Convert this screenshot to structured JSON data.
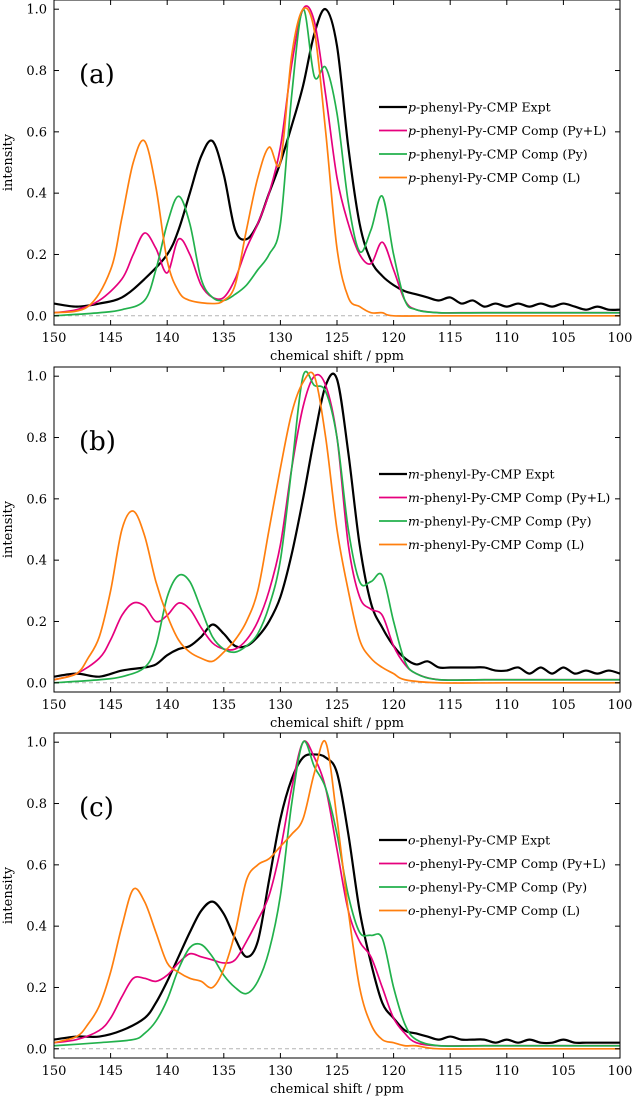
{
  "chart_data": [
    {
      "type": "line",
      "panel_label": "(a)",
      "xlabel": "chemical shift / ppm",
      "ylabel": "intensity",
      "xlim": [
        150,
        100
      ],
      "ylim": [
        -0.03,
        1.03
      ],
      "x_ticks": [
        150,
        145,
        140,
        135,
        130,
        125,
        120,
        115,
        110,
        105,
        100
      ],
      "y_ticks": [
        0.0,
        0.2,
        0.4,
        0.6,
        0.8,
        1.0
      ],
      "baseline": 0,
      "legend_position": "right",
      "series": [
        {
          "name": "p-phenyl-Py-CMP Expt",
          "prefix": "p",
          "rest": "-phenyl-Py-CMP Expt",
          "color": "#000000",
          "x": [
            150,
            148,
            146,
            144,
            142,
            140,
            139,
            138,
            137,
            136,
            135,
            134,
            133,
            132,
            131,
            130,
            129,
            128,
            127,
            126,
            125,
            124,
            123,
            122,
            121,
            120,
            119,
            118,
            117,
            116,
            115,
            114,
            113,
            112,
            111,
            110,
            109,
            108,
            107,
            106,
            105,
            104,
            103,
            102,
            101,
            100
          ],
          "y": [
            0.04,
            0.03,
            0.04,
            0.06,
            0.12,
            0.2,
            0.28,
            0.4,
            0.52,
            0.57,
            0.46,
            0.28,
            0.25,
            0.3,
            0.4,
            0.5,
            0.62,
            0.75,
            0.92,
            1.0,
            0.88,
            0.55,
            0.3,
            0.18,
            0.13,
            0.1,
            0.08,
            0.07,
            0.06,
            0.05,
            0.06,
            0.04,
            0.05,
            0.03,
            0.04,
            0.03,
            0.04,
            0.03,
            0.04,
            0.03,
            0.04,
            0.03,
            0.02,
            0.03,
            0.02,
            0.02
          ]
        },
        {
          "name": "p-phenyl-Py-CMP Comp (Py+L)",
          "prefix": "p",
          "rest": "-phenyl-Py-CMP Comp (Py+L)",
          "color": "#e6007e",
          "x": [
            150,
            148,
            146,
            144,
            143,
            142,
            141,
            140,
            139,
            138,
            137,
            136,
            135,
            134,
            133,
            132,
            131,
            130,
            129,
            128,
            127,
            126,
            125,
            124,
            123,
            122,
            121,
            120,
            119,
            118,
            116,
            114,
            110,
            105,
            100
          ],
          "y": [
            0.01,
            0.02,
            0.05,
            0.12,
            0.2,
            0.27,
            0.22,
            0.14,
            0.25,
            0.2,
            0.1,
            0.06,
            0.06,
            0.12,
            0.22,
            0.3,
            0.4,
            0.55,
            0.82,
            1.0,
            0.96,
            0.72,
            0.45,
            0.3,
            0.2,
            0.17,
            0.24,
            0.15,
            0.05,
            0.02,
            0.01,
            0.01,
            0.01,
            0.01,
            0.01
          ]
        },
        {
          "name": "p-phenyl-Py-CMP Comp (Py)",
          "prefix": "p",
          "rest": "-phenyl-Py-CMP Comp (Py)",
          "color": "#22b14c",
          "x": [
            150,
            146,
            144,
            142,
            141,
            140,
            139,
            138,
            137,
            136,
            135,
            134,
            133,
            132,
            131,
            130,
            129,
            128,
            127,
            126,
            125,
            124,
            123,
            122,
            121,
            120,
            119,
            118,
            116,
            112,
            105,
            100
          ],
          "y": [
            0.0,
            0.01,
            0.02,
            0.05,
            0.15,
            0.3,
            0.39,
            0.3,
            0.12,
            0.06,
            0.05,
            0.07,
            0.1,
            0.15,
            0.2,
            0.3,
            0.72,
            1.0,
            0.78,
            0.81,
            0.66,
            0.37,
            0.21,
            0.28,
            0.39,
            0.2,
            0.05,
            0.02,
            0.01,
            0.01,
            0.01,
            0.01
          ]
        },
        {
          "name": "p-phenyl-Py-CMP Comp (L)",
          "prefix": "p",
          "rest": "-phenyl-Py-CMP Comp (L)",
          "color": "#ff7f0e",
          "x": [
            150,
            147,
            145,
            144,
            143,
            142,
            141,
            140,
            139,
            138,
            136,
            135,
            134,
            133,
            132,
            131,
            130,
            129,
            128,
            127,
            126,
            125,
            124,
            123,
            122,
            121,
            120,
            116,
            110,
            100
          ],
          "y": [
            0.01,
            0.03,
            0.15,
            0.32,
            0.5,
            0.57,
            0.42,
            0.18,
            0.08,
            0.05,
            0.04,
            0.05,
            0.1,
            0.28,
            0.45,
            0.55,
            0.5,
            0.85,
            1.0,
            0.93,
            0.6,
            0.22,
            0.06,
            0.03,
            0.01,
            0.01,
            0.0,
            0.0,
            0.0,
            0.0
          ]
        }
      ]
    },
    {
      "type": "line",
      "panel_label": "(b)",
      "xlabel": "chemical shift / ppm",
      "ylabel": "intensity",
      "xlim": [
        150,
        100
      ],
      "ylim": [
        -0.03,
        1.03
      ],
      "x_ticks": [
        150,
        145,
        140,
        135,
        130,
        125,
        120,
        115,
        110,
        105,
        100
      ],
      "y_ticks": [
        0.0,
        0.2,
        0.4,
        0.6,
        0.8,
        1.0
      ],
      "baseline": 0,
      "legend_position": "right",
      "series": [
        {
          "name": "m-phenyl-Py-CMP Expt",
          "prefix": "m",
          "rest": "-phenyl-Py-CMP Expt",
          "color": "#000000",
          "x": [
            150,
            148,
            146,
            144,
            142,
            141,
            140,
            139,
            138,
            137,
            136,
            135,
            134,
            133,
            132,
            131,
            130,
            129,
            128,
            127,
            126,
            125,
            124,
            123,
            122,
            121,
            120,
            119,
            118,
            117,
            116,
            115,
            114,
            113,
            112,
            111,
            110,
            109,
            108,
            107,
            106,
            105,
            104,
            103,
            102,
            101,
            100
          ],
          "y": [
            0.02,
            0.03,
            0.02,
            0.04,
            0.05,
            0.06,
            0.09,
            0.11,
            0.12,
            0.15,
            0.19,
            0.16,
            0.12,
            0.12,
            0.15,
            0.2,
            0.28,
            0.42,
            0.6,
            0.8,
            0.97,
            0.99,
            0.75,
            0.45,
            0.26,
            0.18,
            0.12,
            0.08,
            0.06,
            0.07,
            0.05,
            0.05,
            0.05,
            0.05,
            0.05,
            0.04,
            0.04,
            0.05,
            0.03,
            0.05,
            0.03,
            0.05,
            0.03,
            0.04,
            0.03,
            0.04,
            0.03
          ]
        },
        {
          "name": "m-phenyl-Py-CMP Comp (Py+L)",
          "prefix": "m",
          "rest": "-phenyl-Py-CMP Comp (Py+L)",
          "color": "#e6007e",
          "x": [
            150,
            148,
            146,
            145,
            144,
            143,
            142,
            141,
            140,
            139,
            138,
            137,
            136,
            135,
            134,
            133,
            132,
            131,
            130,
            129,
            128,
            127,
            126,
            125,
            124,
            123,
            122,
            121,
            120,
            119,
            118,
            116,
            112,
            105,
            100
          ],
          "y": [
            0.01,
            0.03,
            0.08,
            0.14,
            0.22,
            0.26,
            0.25,
            0.2,
            0.22,
            0.26,
            0.24,
            0.18,
            0.13,
            0.11,
            0.11,
            0.14,
            0.2,
            0.3,
            0.45,
            0.7,
            0.9,
            1.0,
            0.97,
            0.8,
            0.45,
            0.28,
            0.24,
            0.22,
            0.12,
            0.06,
            0.03,
            0.01,
            0.01,
            0.01,
            0.01
          ]
        },
        {
          "name": "m-phenyl-Py-CMP Comp (Py)",
          "prefix": "m",
          "rest": "-phenyl-Py-CMP Comp (Py)",
          "color": "#22b14c",
          "x": [
            150,
            146,
            144,
            142,
            141,
            140,
            139,
            138,
            137,
            136,
            135,
            134,
            133,
            132,
            131,
            130,
            129,
            128,
            127,
            126,
            125,
            124,
            123,
            122,
            121,
            120,
            119,
            118,
            116,
            112,
            105,
            100
          ],
          "y": [
            0.0,
            0.01,
            0.02,
            0.05,
            0.12,
            0.28,
            0.35,
            0.33,
            0.24,
            0.15,
            0.11,
            0.1,
            0.12,
            0.16,
            0.25,
            0.4,
            0.7,
            1.0,
            0.97,
            0.95,
            0.8,
            0.5,
            0.33,
            0.33,
            0.35,
            0.2,
            0.07,
            0.03,
            0.01,
            0.01,
            0.01,
            0.01
          ]
        },
        {
          "name": "m-phenyl-Py-CMP Comp (L)",
          "prefix": "m",
          "rest": "-phenyl-Py-CMP Comp (L)",
          "color": "#ff7f0e",
          "x": [
            150,
            148,
            147,
            146,
            145,
            144,
            143,
            142,
            141,
            140,
            139,
            138,
            137,
            136,
            135,
            134,
            133,
            132,
            131,
            130,
            129,
            128,
            127,
            126,
            125,
            124,
            123,
            122,
            121,
            120,
            119,
            116,
            110,
            100
          ],
          "y": [
            0.01,
            0.03,
            0.08,
            0.15,
            0.3,
            0.5,
            0.56,
            0.48,
            0.33,
            0.22,
            0.14,
            0.1,
            0.08,
            0.07,
            0.1,
            0.14,
            0.2,
            0.3,
            0.5,
            0.7,
            0.88,
            0.98,
            1.0,
            0.8,
            0.5,
            0.3,
            0.14,
            0.08,
            0.05,
            0.03,
            0.01,
            0.0,
            0.0,
            0.0
          ]
        }
      ]
    },
    {
      "type": "line",
      "panel_label": "(c)",
      "xlabel": "chemical shift / ppm",
      "ylabel": "intensity",
      "xlim": [
        150,
        100
      ],
      "ylim": [
        -0.03,
        1.03
      ],
      "x_ticks": [
        150,
        145,
        140,
        135,
        130,
        125,
        120,
        115,
        110,
        105,
        100
      ],
      "y_ticks": [
        0.0,
        0.2,
        0.4,
        0.6,
        0.8,
        1.0
      ],
      "baseline": 0,
      "legend_position": "right",
      "series": [
        {
          "name": "o-phenyl-Py-CMP Expt",
          "prefix": "o",
          "rest": "-phenyl-Py-CMP Expt",
          "color": "#000000",
          "x": [
            150,
            148,
            146,
            144,
            142,
            141,
            140,
            139,
            138,
            137,
            136,
            135,
            134,
            133,
            132,
            131,
            130,
            129,
            128,
            127,
            126,
            125,
            124,
            123,
            122,
            121,
            120,
            119,
            118,
            117,
            116,
            115,
            114,
            113,
            112,
            111,
            110,
            109,
            108,
            107,
            106,
            105,
            104,
            103,
            102,
            101,
            100
          ],
          "y": [
            0.03,
            0.04,
            0.04,
            0.06,
            0.1,
            0.15,
            0.22,
            0.3,
            0.38,
            0.45,
            0.48,
            0.44,
            0.36,
            0.3,
            0.35,
            0.55,
            0.75,
            0.88,
            0.95,
            0.96,
            0.95,
            0.9,
            0.7,
            0.45,
            0.28,
            0.15,
            0.1,
            0.06,
            0.05,
            0.04,
            0.03,
            0.04,
            0.03,
            0.03,
            0.03,
            0.02,
            0.03,
            0.02,
            0.03,
            0.02,
            0.02,
            0.03,
            0.02,
            0.02,
            0.02,
            0.02,
            0.02
          ]
        },
        {
          "name": "o-phenyl-Py-CMP Comp (Py+L)",
          "prefix": "o",
          "rest": "-phenyl-Py-CMP Comp (Py+L)",
          "color": "#e6007e",
          "x": [
            150,
            148,
            146,
            145,
            144,
            143,
            142,
            141,
            140,
            139,
            138,
            137,
            136,
            135,
            134,
            133,
            132,
            131,
            130,
            129,
            128,
            127,
            126,
            125,
            124,
            123,
            122,
            121,
            120,
            119,
            118,
            116,
            112,
            105,
            100
          ],
          "y": [
            0.02,
            0.03,
            0.06,
            0.1,
            0.17,
            0.23,
            0.23,
            0.22,
            0.24,
            0.28,
            0.31,
            0.3,
            0.29,
            0.28,
            0.29,
            0.35,
            0.42,
            0.5,
            0.65,
            0.85,
            1.0,
            0.95,
            0.85,
            0.65,
            0.45,
            0.35,
            0.3,
            0.2,
            0.1,
            0.05,
            0.02,
            0.01,
            0.01,
            0.01,
            0.01
          ]
        },
        {
          "name": "o-phenyl-Py-CMP Comp (Py)",
          "prefix": "o",
          "rest": "-phenyl-Py-CMP Comp (Py)",
          "color": "#22b14c",
          "x": [
            150,
            146,
            143,
            142,
            141,
            140,
            139,
            138,
            137,
            136,
            135,
            134,
            133,
            132,
            131,
            130,
            129,
            128,
            127,
            126,
            125,
            124,
            123,
            122,
            121,
            120,
            119,
            118,
            116,
            112,
            105,
            100
          ],
          "y": [
            0.01,
            0.02,
            0.03,
            0.05,
            0.09,
            0.16,
            0.26,
            0.33,
            0.34,
            0.3,
            0.24,
            0.2,
            0.18,
            0.22,
            0.32,
            0.5,
            0.8,
            1.0,
            0.92,
            0.85,
            0.7,
            0.5,
            0.38,
            0.37,
            0.36,
            0.2,
            0.08,
            0.03,
            0.01,
            0.01,
            0.01,
            0.01
          ]
        },
        {
          "name": "o-phenyl-Py-CMP Comp (L)",
          "prefix": "o",
          "rest": "-phenyl-Py-CMP Comp (L)",
          "color": "#ff7f0e",
          "x": [
            150,
            148,
            147,
            146,
            145,
            144,
            143,
            142,
            141,
            140,
            139,
            138,
            137,
            136,
            135,
            134,
            133,
            132,
            131,
            130,
            129,
            128,
            127,
            126,
            125,
            124,
            123,
            122,
            121,
            120,
            119,
            118,
            116,
            110,
            100
          ],
          "y": [
            0.02,
            0.04,
            0.08,
            0.14,
            0.25,
            0.4,
            0.52,
            0.48,
            0.38,
            0.28,
            0.25,
            0.23,
            0.22,
            0.2,
            0.26,
            0.38,
            0.55,
            0.6,
            0.62,
            0.66,
            0.7,
            0.75,
            0.9,
            1.0,
            0.75,
            0.45,
            0.2,
            0.08,
            0.03,
            0.02,
            0.01,
            0.01,
            0.0,
            0.0,
            0.0
          ]
        }
      ]
    }
  ]
}
